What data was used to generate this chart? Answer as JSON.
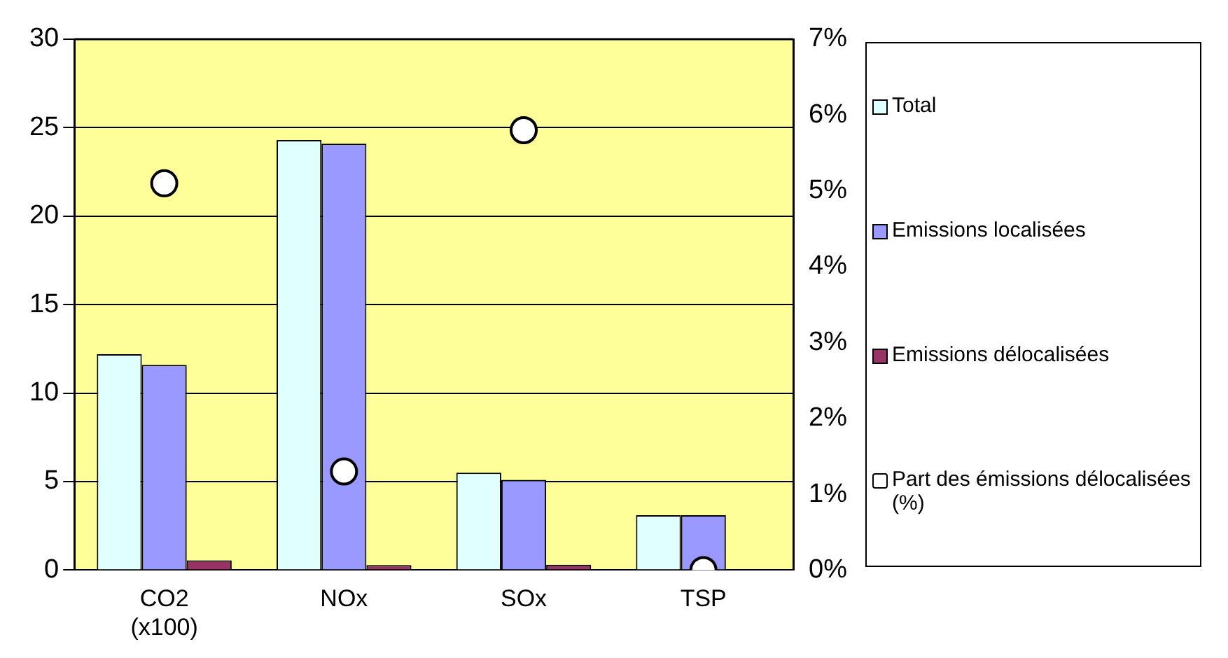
{
  "chart_data": {
    "type": "bar",
    "categories": [
      "CO2\n(x100)",
      "NOx",
      "SOx",
      "TSP"
    ],
    "series": [
      {
        "name": "Total",
        "color": "#e0ffff",
        "values": [
          12.2,
          24.3,
          5.5,
          3.1
        ]
      },
      {
        "name": "Emissions localisées",
        "color": "#9999ff",
        "values": [
          11.6,
          24.1,
          5.1,
          3.1
        ]
      },
      {
        "name": "Emissions délocalisées",
        "color": "#993366",
        "values": [
          0.55,
          0.28,
          0.3,
          0
        ]
      },
      {
        "name": "Part des émissions délocalisées (%)",
        "type": "scatter",
        "axis": "y2",
        "color": "#ffffff",
        "values": [
          5.1,
          1.3,
          5.8,
          0
        ]
      }
    ],
    "ylim": [
      0,
      30
    ],
    "yticks": [
      0,
      5,
      10,
      15,
      20,
      25,
      30
    ],
    "y2lim": [
      0,
      7
    ],
    "y2ticks": [
      {
        "value": 0,
        "label": "0%"
      },
      {
        "value": 1,
        "label": "1%"
      },
      {
        "value": 2,
        "label": "2%"
      },
      {
        "value": 3,
        "label": "3%"
      },
      {
        "value": 4,
        "label": "4%"
      },
      {
        "value": 5,
        "label": "5%"
      },
      {
        "value": 6,
        "label": "6%"
      },
      {
        "value": 7,
        "label": "7%"
      }
    ],
    "grid": "y",
    "legend": "right",
    "marker": "circle"
  }
}
